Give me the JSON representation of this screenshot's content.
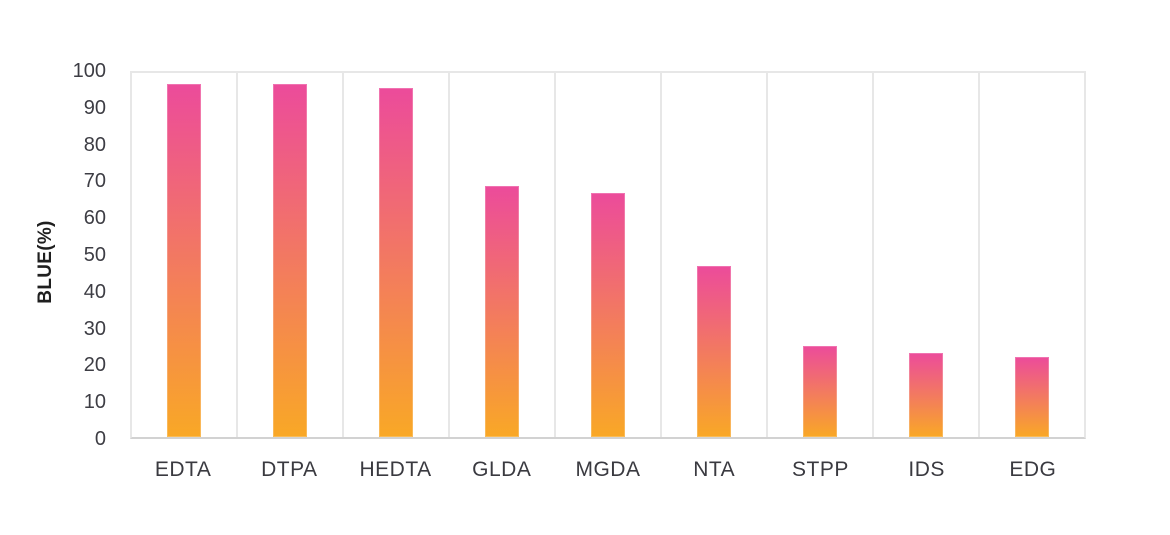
{
  "chart_data": {
    "type": "bar",
    "title": "",
    "xlabel": "",
    "ylabel": "BLUE(%)",
    "categories": [
      "EDTA",
      "DTPA",
      "HEDTA",
      "GLDA",
      "MGDA",
      "NTA",
      "STPP",
      "IDS",
      "EDG"
    ],
    "values": [
      97,
      97,
      96,
      69,
      67,
      47,
      25,
      23,
      22
    ],
    "ylim": [
      0,
      100
    ],
    "yticks": [
      0,
      10,
      20,
      30,
      40,
      50,
      60,
      70,
      80,
      90,
      100
    ],
    "grid": "vertical-category-separators",
    "legend_position": "none",
    "style": {
      "bar_gradient_top": "#ec4b9b",
      "bar_gradient_bottom": "#f9a826",
      "plot_border_color": "#e7e7e7",
      "baseline_color": "#d2d2d2",
      "tick_label_color": "#3d3d44",
      "axis_title_color": "#1f1f1f",
      "background": "#ffffff"
    }
  }
}
